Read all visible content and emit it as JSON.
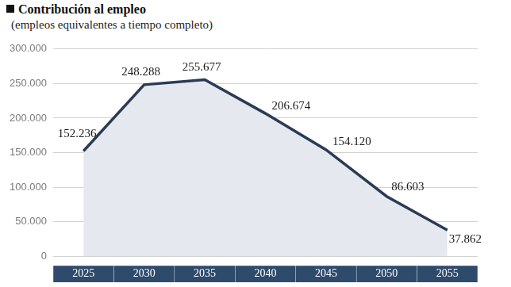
{
  "chart_data": {
    "type": "line",
    "title": "Contribución al empleo",
    "subtitle": "(empleos equivalentes a tiempo completo)",
    "categories": [
      "2025",
      "2030",
      "2035",
      "2040",
      "2045",
      "2050",
      "2055"
    ],
    "values": [
      152236,
      248288,
      255677,
      206674,
      154120,
      86603,
      37862
    ],
    "value_labels": [
      "152.236",
      "248.288",
      "255.677",
      "206.674",
      "154.120",
      "86.603",
      "37.862"
    ],
    "data_labels": true,
    "color": "#2b3b55",
    "ylim": [
      0,
      300000
    ],
    "yticks": [
      0,
      {
        "value": 50000,
        "label": "50.000"
      },
      {
        "value": 100000,
        "label": "100.000"
      },
      {
        "value": 150000,
        "label": "150.000"
      },
      {
        "value": 200000,
        "label": "200.000"
      },
      {
        "value": 250000,
        "label": "250.000"
      },
      {
        "value": 300000,
        "label": "300.000"
      }
    ],
    "grid": true
  }
}
